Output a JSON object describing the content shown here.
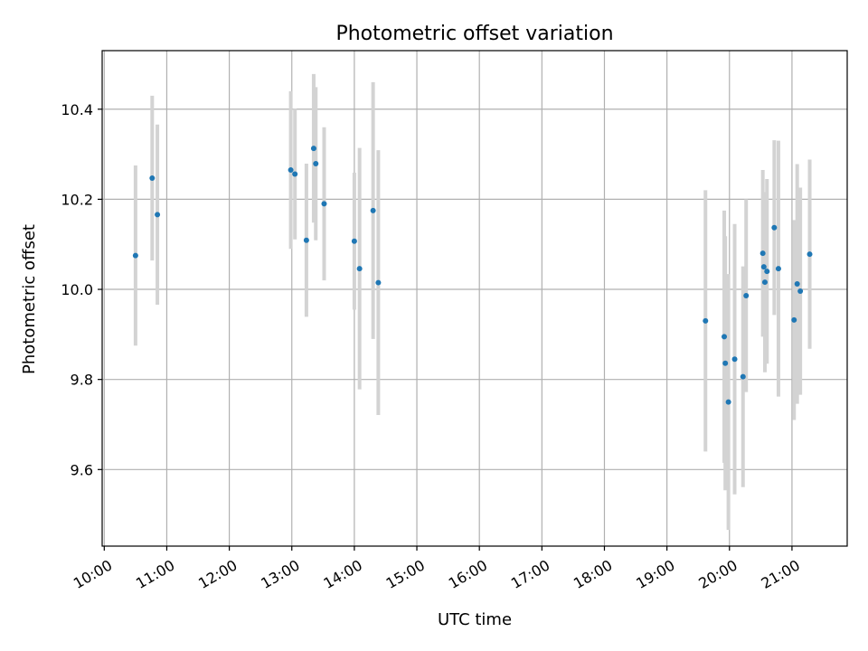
{
  "chart_data": {
    "type": "scatter",
    "title": "Photometric offset variation",
    "xlabel": "UTC time",
    "ylabel": "Photometric offset",
    "grid": true,
    "xlim": [
      "09:58",
      "21:53"
    ],
    "ylim": [
      9.43,
      10.53
    ],
    "x_ticks": [
      "10:00",
      "11:00",
      "12:00",
      "13:00",
      "14:00",
      "15:00",
      "16:00",
      "17:00",
      "18:00",
      "19:00",
      "20:00",
      "21:00"
    ],
    "y_ticks": [
      "9.6",
      "9.8",
      "10.0",
      "10.2",
      "10.4"
    ],
    "series": [
      {
        "marker_color": "#1f77b4",
        "errorbar_color": "#d3d3d3",
        "points": [
          {
            "time": "10:30",
            "y": 10.075,
            "err": 0.2
          },
          {
            "time": "10:46",
            "y": 10.247,
            "err": 0.183
          },
          {
            "time": "10:51",
            "y": 10.166,
            "err": 0.2
          },
          {
            "time": "12:59",
            "y": 10.265,
            "err": 0.175
          },
          {
            "time": "13:03",
            "y": 10.256,
            "err": 0.145
          },
          {
            "time": "13:14",
            "y": 10.109,
            "err": 0.17
          },
          {
            "time": "13:21",
            "y": 10.313,
            "err": 0.165
          },
          {
            "time": "13:23",
            "y": 10.279,
            "err": 0.17
          },
          {
            "time": "13:31",
            "y": 10.19,
            "err": 0.17
          },
          {
            "time": "14:00",
            "y": 10.107,
            "err": 0.152
          },
          {
            "time": "14:05",
            "y": 10.046,
            "err": 0.268
          },
          {
            "time": "14:18",
            "y": 10.175,
            "err": 0.285
          },
          {
            "time": "14:23",
            "y": 10.015,
            "err": 0.294
          },
          {
            "time": "19:37",
            "y": 9.93,
            "err": 0.29
          },
          {
            "time": "19:55",
            "y": 9.895,
            "err": 0.28
          },
          {
            "time": "19:56",
            "y": 9.836,
            "err": 0.282
          },
          {
            "time": "19:59",
            "y": 9.75,
            "err": 0.284
          },
          {
            "time": "20:05",
            "y": 9.845,
            "err": 0.3
          },
          {
            "time": "20:13",
            "y": 9.806,
            "err": 0.245
          },
          {
            "time": "20:16",
            "y": 9.986,
            "err": 0.214
          },
          {
            "time": "20:32",
            "y": 10.08,
            "err": 0.185
          },
          {
            "time": "20:33",
            "y": 10.05,
            "err": 0.15
          },
          {
            "time": "20:34",
            "y": 10.016,
            "err": 0.2
          },
          {
            "time": "20:36",
            "y": 10.04,
            "err": 0.205
          },
          {
            "time": "20:43",
            "y": 10.137,
            "err": 0.194
          },
          {
            "time": "20:47",
            "y": 10.046,
            "err": 0.284
          },
          {
            "time": "21:02",
            "y": 9.932,
            "err": 0.222
          },
          {
            "time": "21:05",
            "y": 10.012,
            "err": 0.266
          },
          {
            "time": "21:08",
            "y": 9.996,
            "err": 0.23
          },
          {
            "time": "21:17",
            "y": 10.078,
            "err": 0.21
          }
        ]
      }
    ]
  }
}
